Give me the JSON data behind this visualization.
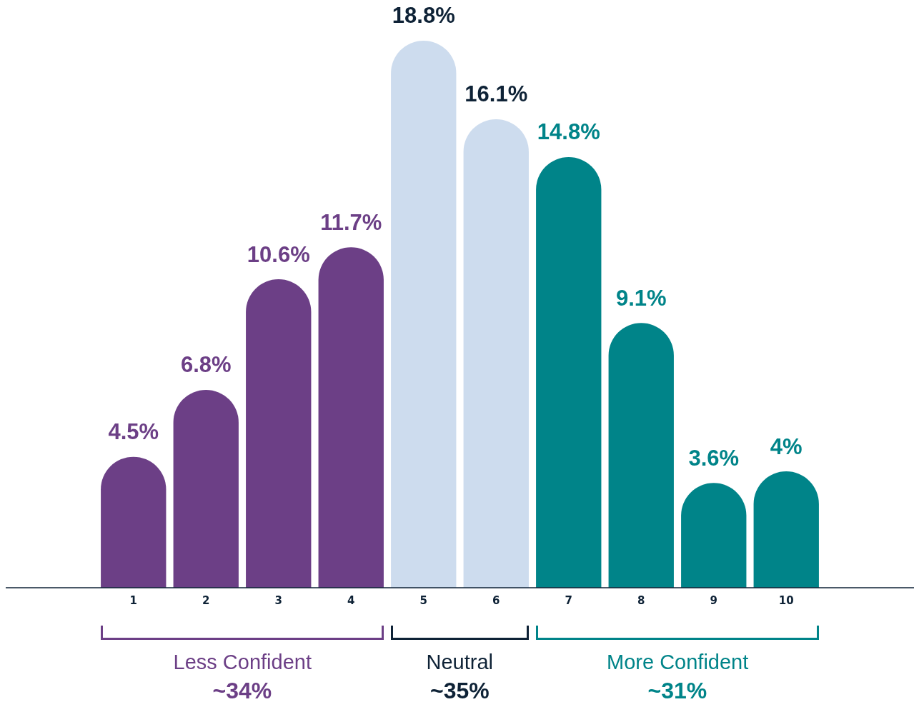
{
  "chart_data": {
    "type": "bar",
    "categories": [
      "1",
      "2",
      "3",
      "4",
      "5",
      "6",
      "7",
      "8",
      "9",
      "10"
    ],
    "values": [
      4.5,
      6.8,
      10.6,
      11.7,
      18.8,
      16.1,
      14.8,
      9.1,
      3.6,
      4
    ],
    "value_labels": [
      "4.5%",
      "6.8%",
      "10.6%",
      "11.7%",
      "18.8%",
      "16.1%",
      "14.8%",
      "9.1%",
      "3.6%",
      "4%"
    ],
    "colors": [
      "#6c3f86",
      "#6c3f86",
      "#6c3f86",
      "#6c3f86",
      "#cddcee",
      "#cddcee",
      "#008489",
      "#008489",
      "#008489",
      "#008489"
    ],
    "tick_labels": "x",
    "annotations": [
      "Less Confident",
      "~34%",
      "Neutral",
      "~35%",
      "More Confident",
      "~31%"
    ]
  }
}
